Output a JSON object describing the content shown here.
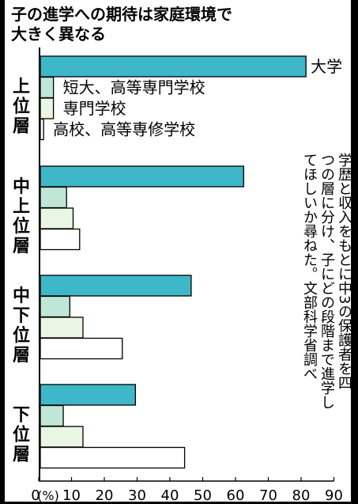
{
  "title": [
    "子の進学への期待は家庭環境で",
    "大きく異なる"
  ],
  "note": [
    "学歴と収入をもとに中3の保護者を四",
    "つの層に分け、子にどの段階まで進学し",
    "てほしいか尋ねた。文部科学省調べ"
  ],
  "chart_data": {
    "type": "bar",
    "orientation": "horizontal",
    "title": "子の進学への期待は家庭環境で大きく異なる",
    "categories": [
      "上位層",
      "中上位層",
      "中下位層",
      "下位層"
    ],
    "series": [
      {
        "name": "大学",
        "color": "#3eb8c8",
        "values": [
          81,
          62,
          46,
          29
        ]
      },
      {
        "name": "短大、高等専門学校",
        "color": "#bfe6d6",
        "values": [
          4,
          8,
          9,
          7
        ]
      },
      {
        "name": "専門学校",
        "color": "#eaf6e4",
        "values": [
          4,
          10,
          13,
          13
        ]
      },
      {
        "name": "高校、高等専修学校",
        "color": "#ffffff",
        "values": [
          1,
          12,
          25,
          44
        ]
      }
    ],
    "xlim": [
      0,
      90
    ],
    "xticks": [
      "0",
      "10",
      "20",
      "30",
      "40",
      "50",
      "60",
      "70",
      "80",
      "90"
    ],
    "xunit": "(%)",
    "legend": "labels beside the top group's bars",
    "grid": false
  }
}
